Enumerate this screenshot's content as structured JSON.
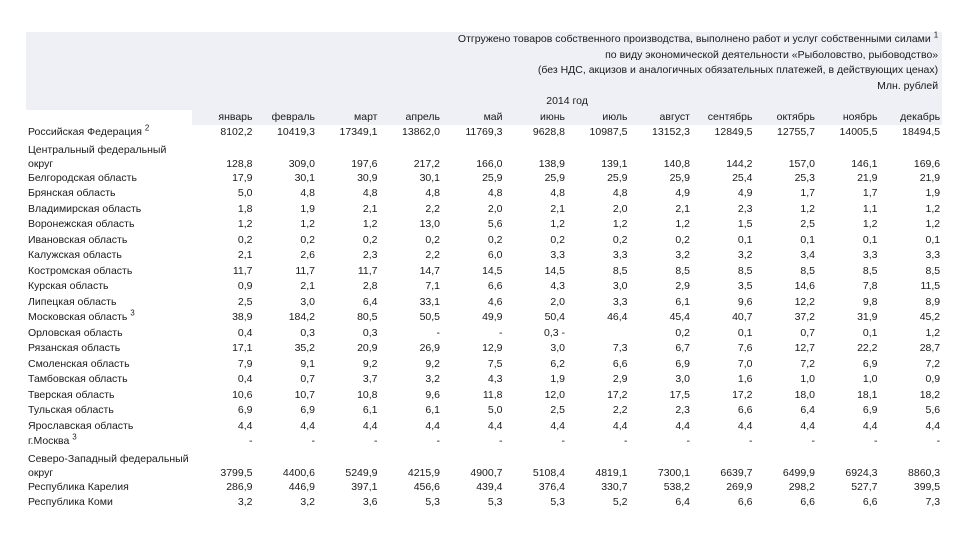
{
  "header": {
    "title_line1": "Отгружено товаров собственного производства, выполнено работ и услуг собственными силами",
    "title_sup": "1",
    "title_line2": "по виду экономической деятельности «Рыболовство, рыбоводство»",
    "title_line3": "(без НДС, акцизов и аналогичных обязательных платежей, в действующих ценах)",
    "units": "Млн. рублей",
    "year": "2014 год"
  },
  "months": [
    "январь",
    "февраль",
    "март",
    "апрель",
    "май",
    "июнь",
    "июль",
    "август",
    "сентябрь",
    "октябрь",
    "ноябрь",
    "декабрь"
  ],
  "rows": [
    {
      "name": "Российская Федерация",
      "sup": "2",
      "values": [
        "8102,2",
        "10419,3",
        "17349,1",
        "13862,0",
        "11769,3",
        "9628,8",
        "10987,5",
        "13152,3",
        "12849,5",
        "12755,7",
        "14005,5",
        "18494,5"
      ]
    },
    {
      "name": "Центральный федеральный округ",
      "sup": "",
      "values": [
        "128,8",
        "309,0",
        "197,6",
        "217,2",
        "166,0",
        "138,9",
        "139,1",
        "140,8",
        "144,2",
        "157,0",
        "146,1",
        "169,6"
      ]
    },
    {
      "name": "Белгородская область",
      "sup": "",
      "values": [
        "17,9",
        "30,1",
        "30,9",
        "30,1",
        "25,9",
        "25,9",
        "25,9",
        "25,9",
        "25,4",
        "25,3",
        "21,9",
        "21,9"
      ]
    },
    {
      "name": "Брянская область",
      "sup": "",
      "values": [
        "5,0",
        "4,8",
        "4,8",
        "4,8",
        "4,8",
        "4,8",
        "4,8",
        "4,9",
        "4,9",
        "1,7",
        "1,7",
        "1,9"
      ]
    },
    {
      "name": "Владимирская область",
      "sup": "",
      "values": [
        "1,8",
        "1,9",
        "2,1",
        "2,2",
        "2,0",
        "2,1",
        "2,0",
        "2,1",
        "2,3",
        "1,2",
        "1,1",
        "1,2"
      ]
    },
    {
      "name": "Воронежская область",
      "sup": "",
      "values": [
        "1,2",
        "1,2",
        "1,2",
        "13,0",
        "5,6",
        "1,2",
        "1,2",
        "1,2",
        "1,5",
        "2,5",
        "1,2",
        "1,2"
      ]
    },
    {
      "name": "Ивановская область",
      "sup": "",
      "values": [
        "0,2",
        "0,2",
        "0,2",
        "0,2",
        "0,2",
        "0,2",
        "0,2",
        "0,2",
        "0,1",
        "0,1",
        "0,1",
        "0,1"
      ]
    },
    {
      "name": "Калужская область",
      "sup": "",
      "values": [
        "2,1",
        "2,6",
        "2,3",
        "2,2",
        "6,0",
        "3,3",
        "3,3",
        "3,2",
        "3,2",
        "3,4",
        "3,3",
        "3,3"
      ]
    },
    {
      "name": "Костромская область",
      "sup": "",
      "values": [
        "11,7",
        "11,7",
        "11,7",
        "14,7",
        "14,5",
        "14,5",
        "8,5",
        "8,5",
        "8,5",
        "8,5",
        "8,5",
        "8,5"
      ]
    },
    {
      "name": "Курская область",
      "sup": "",
      "values": [
        "0,9",
        "2,1",
        "2,8",
        "7,1",
        "6,6",
        "4,3",
        "3,0",
        "2,9",
        "3,5",
        "14,6",
        "7,8",
        "11,5"
      ]
    },
    {
      "name": "Липецкая область",
      "sup": "",
      "values": [
        "2,5",
        "3,0",
        "6,4",
        "33,1",
        "4,6",
        "2,0",
        "3,3",
        "6,1",
        "9,6",
        "12,2",
        "9,8",
        "8,9"
      ]
    },
    {
      "name": "Московская область",
      "sup": "3",
      "values": [
        "38,9",
        "184,2",
        "80,5",
        "50,5",
        "49,9",
        "50,4",
        "46,4",
        "45,4",
        "40,7",
        "37,2",
        "31,9",
        "45,2"
      ]
    },
    {
      "name": "Орловская область",
      "sup": "",
      "values": [
        "0,4",
        "0,3",
        "0,3",
        "-",
        "-",
        "0,3 -",
        "",
        "0,2",
        "0,1",
        "0,7",
        "0,1",
        "1,2"
      ]
    },
    {
      "name": "Рязанская область",
      "sup": "",
      "values": [
        "17,1",
        "35,2",
        "20,9",
        "26,9",
        "12,9",
        "3,0",
        "7,3",
        "6,7",
        "7,6",
        "12,7",
        "22,2",
        "28,7"
      ]
    },
    {
      "name": "Смоленская область",
      "sup": "",
      "values": [
        "7,9",
        "9,1",
        "9,2",
        "9,2",
        "7,5",
        "6,2",
        "6,6",
        "6,9",
        "7,0",
        "7,2",
        "6,9",
        "7,2"
      ]
    },
    {
      "name": "Тамбовская область",
      "sup": "",
      "values": [
        "0,4",
        "0,7",
        "3,7",
        "3,2",
        "4,3",
        "1,9",
        "2,9",
        "3,0",
        "1,6",
        "1,0",
        "1,0",
        "0,9"
      ]
    },
    {
      "name": "Тверская область",
      "sup": "",
      "values": [
        "10,6",
        "10,7",
        "10,8",
        "9,6",
        "11,8",
        "12,0",
        "17,2",
        "17,5",
        "17,2",
        "18,0",
        "18,1",
        "18,2"
      ]
    },
    {
      "name": "Тульская область",
      "sup": "",
      "values": [
        "6,9",
        "6,9",
        "6,1",
        "6,1",
        "5,0",
        "2,5",
        "2,2",
        "2,3",
        "6,6",
        "6,4",
        "6,9",
        "5,6"
      ]
    },
    {
      "name": "Ярославская область",
      "sup": "",
      "values": [
        "4,4",
        "4,4",
        "4,4",
        "4,4",
        "4,4",
        "4,4",
        "4,4",
        "4,4",
        "4,4",
        "4,4",
        "4,4",
        "4,4"
      ]
    },
    {
      "name": "г.Москва",
      "sup": "3",
      "values": [
        "-",
        "-",
        "-",
        "-",
        "-",
        "-",
        "-",
        "-",
        "-",
        "-",
        "-",
        "-"
      ]
    },
    {
      "name": "Северо-Западный федеральный округ",
      "sup": "",
      "values": [
        "3799,5",
        "4400,6",
        "5249,9",
        "4215,9",
        "4900,7",
        "5108,4",
        "4819,1",
        "7300,1",
        "6639,7",
        "6499,9",
        "6924,3",
        "8860,3"
      ]
    },
    {
      "name": "Республика Карелия",
      "sup": "",
      "values": [
        "286,9",
        "446,9",
        "397,1",
        "456,6",
        "439,4",
        "376,4",
        "330,7",
        "538,2",
        "269,9",
        "298,2",
        "527,7",
        "399,5"
      ]
    },
    {
      "name": "Республика Коми",
      "sup": "",
      "values": [
        "3,2",
        "3,2",
        "3,6",
        "5,3",
        "5,3",
        "5,3",
        "5,2",
        "6,4",
        "6,6",
        "6,6",
        "6,6",
        "7,3"
      ]
    }
  ]
}
